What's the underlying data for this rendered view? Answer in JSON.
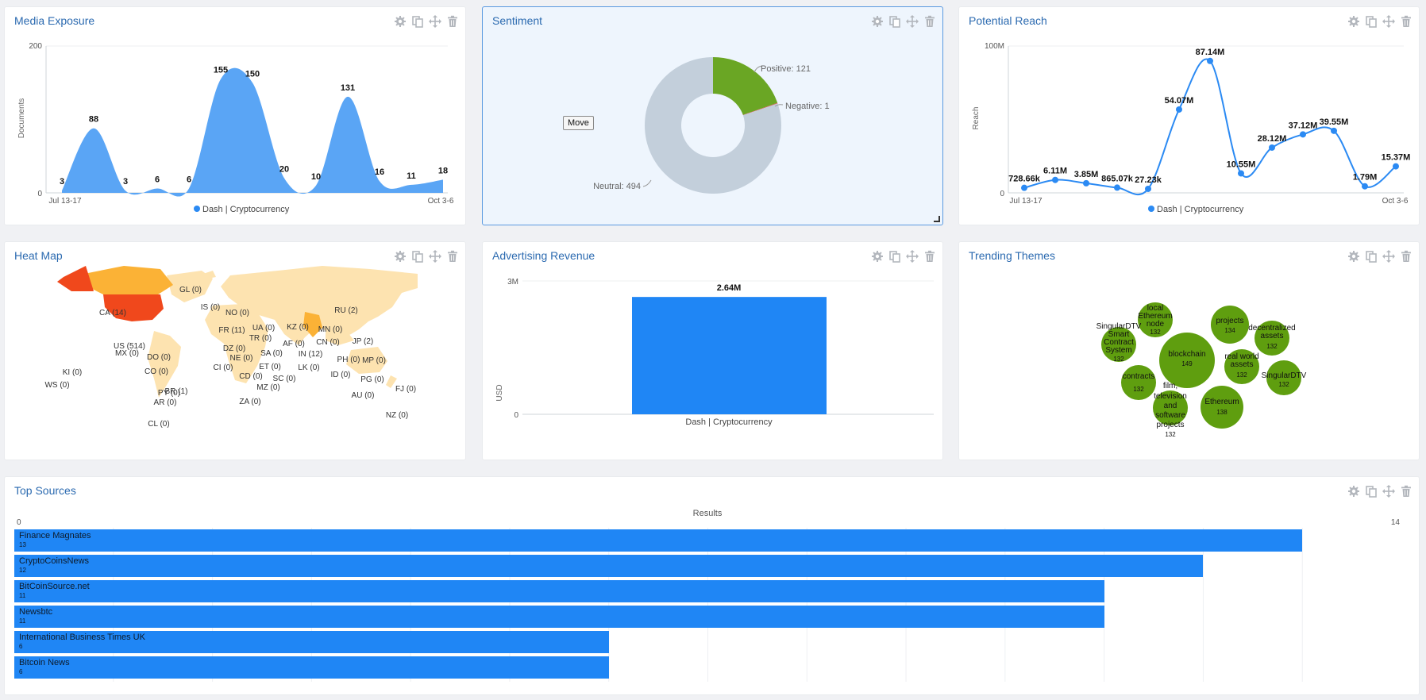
{
  "colors": {
    "accent": "#1f86f5",
    "area": "#5aa5f5",
    "title": "#2b6ab0",
    "positive": "#6aa624",
    "negative": "#d9534f",
    "neutral": "#c3cfdb",
    "bubble": "#5f9e0f",
    "heat_high": "#f0481c",
    "heat_mid": "#fbb236",
    "heat_low": "#fde3b0"
  },
  "tools": {
    "settings_icon": "gear-icon",
    "duplicate_icon": "copy-icon",
    "move_icon": "move-icon",
    "delete_icon": "trash-icon"
  },
  "media_exposure": {
    "title": "Media Exposure",
    "legend": "Dash | Cryptocurrency",
    "chart_data": {
      "type": "area",
      "ylabel": "Documents",
      "ylim": [
        0,
        200
      ],
      "y_ticks": [
        "0",
        "200"
      ],
      "x_labels": [
        "Jul 13-17",
        "Oct 3-6"
      ],
      "values": [
        3,
        88,
        3,
        6,
        6,
        155,
        150,
        20,
        10,
        131,
        16,
        11,
        18
      ],
      "labels": [
        "3",
        "88",
        "3",
        "6",
        "6",
        "155",
        "150",
        "20",
        "10",
        "131",
        "16",
        "11",
        "18"
      ]
    }
  },
  "sentiment": {
    "title": "Sentiment",
    "tooltip": "Move",
    "chart_data": {
      "type": "pie",
      "slices": [
        {
          "name": "Positive",
          "value": 121,
          "label": "Positive: 121"
        },
        {
          "name": "Negative",
          "value": 1,
          "label": "Negative: 1"
        },
        {
          "name": "Neutral",
          "value": 494,
          "label": "Neutral: 494"
        }
      ]
    }
  },
  "potential_reach": {
    "title": "Potential Reach",
    "legend": "Dash | Cryptocurrency",
    "chart_data": {
      "type": "line",
      "ylabel": "Reach",
      "ylim": [
        0,
        100000000
      ],
      "y_ticks": [
        "0",
        "100M"
      ],
      "x_labels": [
        "Jul 13-17",
        "Oct 3-6"
      ],
      "values": [
        728660,
        6110000,
        3850000,
        865070,
        27230,
        54070000,
        87140000,
        10550000,
        28120000,
        37120000,
        39550000,
        1790000,
        15370000
      ],
      "labels": [
        "728.66k",
        "6.11M",
        "3.85M",
        "865.07k",
        "27.23k",
        "54.07M",
        "87.14M",
        "10.55M",
        "28.12M",
        "37.12M",
        "39.55M",
        "1.79M",
        "15.37M"
      ]
    }
  },
  "heat_map": {
    "title": "Heat Map",
    "countries": [
      {
        "code": "US",
        "label": "US (514)",
        "value": 514
      },
      {
        "code": "CA",
        "label": "CA (14)",
        "value": 14
      },
      {
        "code": "IN",
        "label": "IN (12)",
        "value": 12
      },
      {
        "code": "FR",
        "label": "FR (11)",
        "value": 11
      },
      {
        "code": "RU",
        "label": "RU (2)",
        "value": 2
      },
      {
        "code": "JP",
        "label": "JP (2)",
        "value": 2
      },
      {
        "code": "BR",
        "label": "BR (1)",
        "value": 1
      },
      {
        "code": "GL",
        "label": "GL (0)",
        "value": 0
      },
      {
        "code": "IS",
        "label": "IS (0)",
        "value": 0
      },
      {
        "code": "NO",
        "label": "NO (0)",
        "value": 0
      },
      {
        "code": "UA",
        "label": "UA (0)",
        "value": 0
      },
      {
        "code": "KZ",
        "label": "KZ (0)",
        "value": 0
      },
      {
        "code": "MN",
        "label": "MN (0)",
        "value": 0
      },
      {
        "code": "TR",
        "label": "TR (0)",
        "value": 0
      },
      {
        "code": "AF",
        "label": "AF (0)",
        "value": 0
      },
      {
        "code": "CN",
        "label": "CN (0)",
        "value": 0
      },
      {
        "code": "MX",
        "label": "MX (0)",
        "value": 0
      },
      {
        "code": "DO",
        "label": "DO (0)",
        "value": 0
      },
      {
        "code": "DZ",
        "label": "DZ (0)",
        "value": 0
      },
      {
        "code": "SA",
        "label": "SA (0)",
        "value": 0
      },
      {
        "code": "NE",
        "label": "NE (0)",
        "value": 0
      },
      {
        "code": "PH",
        "label": "PH (0)",
        "value": 0
      },
      {
        "code": "MP",
        "label": "MP (0)",
        "value": 0
      },
      {
        "code": "KI",
        "label": "KI (0)",
        "value": 0
      },
      {
        "code": "CO",
        "label": "CO (0)",
        "value": 0
      },
      {
        "code": "CI",
        "label": "CI (0)",
        "value": 0
      },
      {
        "code": "ET",
        "label": "ET (0)",
        "value": 0
      },
      {
        "code": "LK",
        "label": "LK (0)",
        "value": 0
      },
      {
        "code": "ID",
        "label": "ID (0)",
        "value": 0
      },
      {
        "code": "PG",
        "label": "PG (0)",
        "value": 0
      },
      {
        "code": "WS",
        "label": "WS (0)",
        "value": 0
      },
      {
        "code": "CD",
        "label": "CD (0)",
        "value": 0
      },
      {
        "code": "SC",
        "label": "SC (0)",
        "value": 0
      },
      {
        "code": "FJ",
        "label": "FJ (0)",
        "value": 0
      },
      {
        "code": "PY",
        "label": "PY (0)",
        "value": 0
      },
      {
        "code": "MZ",
        "label": "MZ (0)",
        "value": 0
      },
      {
        "code": "AU",
        "label": "AU (0)",
        "value": 0
      },
      {
        "code": "AR",
        "label": "AR (0)",
        "value": 0
      },
      {
        "code": "ZA",
        "label": "ZA (0)",
        "value": 0
      },
      {
        "code": "NZ",
        "label": "NZ (0)",
        "value": 0
      },
      {
        "code": "CL",
        "label": "CL (0)",
        "value": 0
      }
    ]
  },
  "advertising_revenue": {
    "title": "Advertising Revenue",
    "chart_data": {
      "type": "bar",
      "ylabel": "USD",
      "ylim": [
        0,
        3000000
      ],
      "y_ticks": [
        "0",
        "3M"
      ],
      "categories": [
        "Dash | Cryptocurrency"
      ],
      "values": [
        2640000
      ],
      "labels": [
        "2.64M"
      ]
    }
  },
  "trending_themes": {
    "title": "Trending Themes",
    "bubbles": [
      {
        "name": "local Ethereum node",
        "count": 132
      },
      {
        "name": "SingularDTV Smart Contract System",
        "count": 132
      },
      {
        "name": "projects",
        "count": 134
      },
      {
        "name": "decentralized assets",
        "count": 132
      },
      {
        "name": "blockchain",
        "count": 149
      },
      {
        "name": "real world assets",
        "count": 132
      },
      {
        "name": "SingularDTV",
        "count": 132
      },
      {
        "name": "contracts",
        "count": 132
      },
      {
        "name": "film, television and software projects",
        "count": 132
      },
      {
        "name": "Ethereum",
        "count": 138
      }
    ]
  },
  "top_sources": {
    "title": "Top Sources",
    "chart_data": {
      "type": "bar",
      "orientation": "horizontal",
      "xlabel": "Results",
      "xlim": [
        0,
        14
      ],
      "x_ticks": [
        "0",
        "14"
      ],
      "categories": [
        "Finance Magnates",
        "CryptoCoinsNews",
        "BitCoinSource.net",
        "Newsbtc",
        "International Business Times UK",
        "Bitcoin News"
      ],
      "values": [
        13,
        12,
        11,
        11,
        6,
        6
      ],
      "labels": [
        "13",
        "12",
        "11",
        "11",
        "6",
        "6"
      ]
    }
  }
}
